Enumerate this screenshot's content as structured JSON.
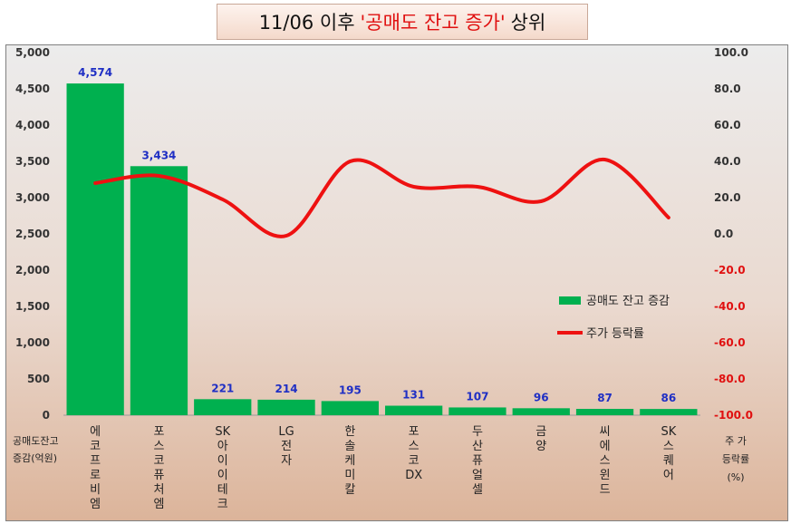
{
  "title": {
    "prefix": "11/06 이후",
    "highlight": "'공매도 잔고 증가'",
    "suffix": "상위"
  },
  "colors": {
    "bar": "#00b04f",
    "line": "#ee1111",
    "data_label": "#1f2fc4",
    "right_axis": "#e01010"
  },
  "chart_data": {
    "type": "bar",
    "categories": [
      "에코프로비엠",
      "포스코퓨처엠",
      "SK아이이테크",
      "LG전자",
      "한솔케미칼",
      "포스코DX",
      "두산퓨얼셀",
      "금양",
      "씨에스윈드",
      "SK스퀘어"
    ],
    "category_display": [
      "에\n코\n프\n로\n비\n엠",
      "포\n스\n코\n퓨\n처\n엠",
      "SK\n아\n이\n이\n테\n크",
      "LG\n전\n자",
      "한\n솔\n케\n미\n칼",
      "포\n스\n코\nDX",
      "두\n산\n퓨\n얼\n셀",
      "금\n양",
      "씨\n에\n스\n윈\n드",
      "SK\n스\n퀘\n어"
    ],
    "series": [
      {
        "name": "공매도 잔고 증감",
        "type": "bar",
        "axis": "left",
        "values": [
          4574,
          3434,
          221,
          214,
          195,
          131,
          107,
          96,
          87,
          86
        ],
        "labels": [
          "4,574",
          "3,434",
          "221",
          "214",
          "195",
          "131",
          "107",
          "96",
          "87",
          "86"
        ]
      },
      {
        "name": "주가 등락률",
        "type": "line",
        "axis": "right",
        "smooth": true,
        "values": [
          28,
          32,
          19,
          -1,
          40,
          26,
          26,
          18,
          41,
          9
        ]
      }
    ],
    "y_left": {
      "range": [
        0,
        5000
      ],
      "ticks": [
        "0",
        "500",
        "1,000",
        "1,500",
        "2,000",
        "2,500",
        "3,000",
        "3,500",
        "4,000",
        "4,500",
        "5,000"
      ],
      "label_lines": [
        "공매도잔고",
        "증감(억원)"
      ]
    },
    "y_right": {
      "range": [
        -100,
        100
      ],
      "ticks": [
        "-100.0",
        "-80.0",
        "-60.0",
        "-40.0",
        "-20.0",
        "0.0",
        "20.0",
        "40.0",
        "60.0",
        "80.0",
        "100.0"
      ],
      "label_lines": [
        "주  가",
        "등락률",
        "(%)"
      ]
    },
    "legend": {
      "position": "right"
    },
    "grid": false
  }
}
